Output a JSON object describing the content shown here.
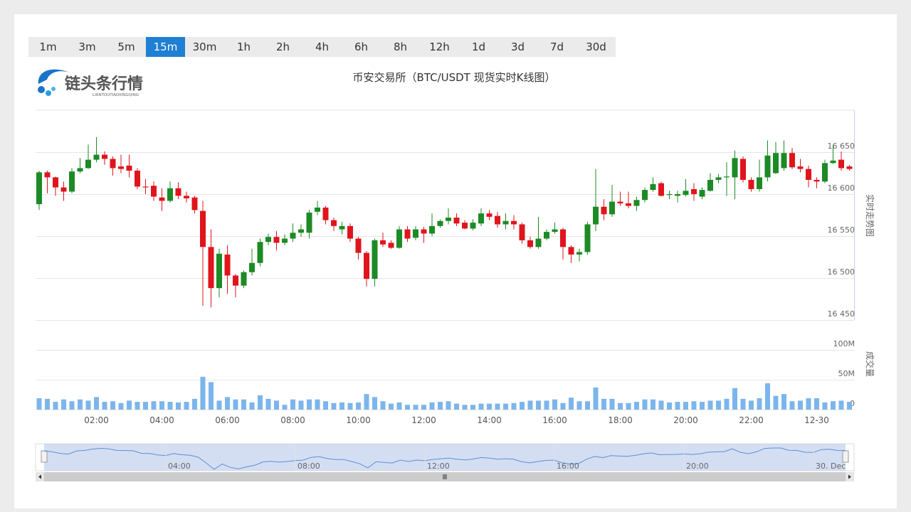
{
  "toolbar": {
    "timeframes": [
      "1m",
      "3m",
      "5m",
      "15m",
      "30m",
      "1h",
      "2h",
      "4h",
      "6h",
      "8h",
      "12h",
      "1d",
      "3d",
      "7d",
      "30d"
    ],
    "active_index": 3
  },
  "logo": {
    "name": "链头条行情",
    "subtitle": "LIANTOUTIAOXINGQING"
  },
  "chart_data": [
    {
      "type": "candlestick",
      "title": "币安交易所（BTC/USDT 现货实时K线图）",
      "y_label": "实时走势图",
      "up_color": "#1c8a25",
      "down_color": "#e0141c",
      "ylim": [
        16450,
        16700
      ],
      "yticks": [
        {
          "value": 16450,
          "label": "16 450"
        },
        {
          "value": 16500,
          "label": "16 500"
        },
        {
          "value": 16550,
          "label": "16 550"
        },
        {
          "value": 16600,
          "label": "16 600"
        },
        {
          "value": 16650,
          "label": "16 650"
        }
      ],
      "grid": true,
      "open": [
        16588,
        16626,
        16620,
        16608,
        16603,
        16627,
        16631,
        16641,
        16647,
        16642,
        16633,
        16634,
        16628,
        16609,
        16610,
        16596,
        16592,
        16607,
        16598,
        16596,
        16580,
        16537,
        16488,
        16528,
        16503,
        16491,
        16507,
        16518,
        16543,
        16549,
        16542,
        16547,
        16554,
        16554,
        16579,
        16584,
        16569,
        16558,
        16562,
        16547,
        16530,
        16499,
        16545,
        16542,
        16536,
        16558,
        16548,
        16558,
        16553,
        16562,
        16568,
        16572,
        16566,
        16559,
        16565,
        16577,
        16574,
        16564,
        16568,
        16564,
        16545,
        16537,
        16547,
        16555,
        16558,
        16537,
        16528,
        16531,
        16564,
        16585,
        16576,
        16591,
        16589,
        16586,
        16593,
        16605,
        16613,
        16599,
        16598,
        16599,
        16606,
        16597,
        16604,
        16617,
        16620,
        16620,
        16642,
        16617,
        16606,
        16620,
        16625,
        16631,
        16649,
        16633,
        16630,
        16617,
        16615,
        16637,
        16641,
        16633
      ],
      "high": [
        16628,
        16628,
        16621,
        16615,
        16631,
        16643,
        16659,
        16668,
        16651,
        16645,
        16647,
        16647,
        16631,
        16618,
        16615,
        16607,
        16615,
        16614,
        16603,
        16598,
        16592,
        16558,
        16535,
        16539,
        16505,
        16509,
        16535,
        16547,
        16553,
        16556,
        16552,
        16565,
        16564,
        16581,
        16592,
        16586,
        16572,
        16567,
        16565,
        16549,
        16532,
        16547,
        16554,
        16545,
        16562,
        16562,
        16562,
        16561,
        16577,
        16570,
        16583,
        16577,
        16569,
        16570,
        16583,
        16581,
        16579,
        16577,
        16575,
        16566,
        16549,
        16573,
        16558,
        16566,
        16560,
        16539,
        16535,
        16567,
        16630,
        16594,
        16611,
        16603,
        16603,
        16597,
        16608,
        16620,
        16615,
        16604,
        16604,
        16618,
        16613,
        16608,
        16625,
        16624,
        16638,
        16652,
        16645,
        16620,
        16641,
        16664,
        16662,
        16664,
        16655,
        16642,
        16634,
        16620,
        16641,
        16658,
        16651,
        16635
      ],
      "low": [
        16581,
        16601,
        16598,
        16592,
        16601,
        16625,
        16630,
        16638,
        16635,
        16622,
        16625,
        16620,
        16606,
        16600,
        16592,
        16580,
        16590,
        16594,
        16590,
        16577,
        16467,
        16465,
        16477,
        16481,
        16477,
        16488,
        16503,
        16514,
        16539,
        16533,
        16539,
        16543,
        16549,
        16547,
        16575,
        16564,
        16556,
        16552,
        16543,
        16522,
        16490,
        16490,
        16537,
        16535,
        16535,
        16543,
        16545,
        16542,
        16550,
        16560,
        16564,
        16562,
        16558,
        16557,
        16562,
        16569,
        16560,
        16558,
        16558,
        16541,
        16535,
        16535,
        16545,
        16553,
        16522,
        16518,
        16520,
        16528,
        16556,
        16569,
        16573,
        16586,
        16583,
        16580,
        16590,
        16603,
        16597,
        16594,
        16590,
        16597,
        16592,
        16594,
        16603,
        16613,
        16598,
        16594,
        16614,
        16603,
        16603,
        16615,
        16624,
        16628,
        16630,
        16626,
        16608,
        16607,
        16613,
        16636,
        16628,
        16628
      ],
      "close": [
        16626,
        16620,
        16608,
        16603,
        16627,
        16631,
        16641,
        16647,
        16642,
        16631,
        16630,
        16628,
        16609,
        16608,
        16597,
        16592,
        16607,
        16598,
        16595,
        16581,
        16537,
        16488,
        16529,
        16503,
        16491,
        16507,
        16518,
        16543,
        16549,
        16542,
        16547,
        16554,
        16558,
        16578,
        16584,
        16569,
        16562,
        16562,
        16547,
        16530,
        16499,
        16545,
        16540,
        16536,
        16558,
        16547,
        16558,
        16553,
        16562,
        16568,
        16572,
        16565,
        16559,
        16566,
        16577,
        16573,
        16564,
        16568,
        16564,
        16545,
        16537,
        16547,
        16555,
        16558,
        16537,
        16528,
        16531,
        16564,
        16585,
        16576,
        16591,
        16589,
        16586,
        16593,
        16605,
        16612,
        16598,
        16600,
        16600,
        16604,
        16600,
        16605,
        16617,
        16620,
        16621,
        16643,
        16617,
        16606,
        16620,
        16646,
        16649,
        16649,
        16632,
        16630,
        16617,
        16615,
        16637,
        16640,
        16631,
        16630
      ]
    },
    {
      "type": "bar",
      "y_label": "成交量",
      "color": "#7cb5ec",
      "ylim": [
        0,
        100
      ],
      "yticks": [
        0,
        {
          "value": 50,
          "label": "50M"
        },
        {
          "value": 100,
          "label": "100M"
        }
      ],
      "grid": true,
      "categories": [
        null,
        null,
        null,
        null,
        null,
        null,
        null,
        "02:00",
        null,
        null,
        null,
        null,
        null,
        null,
        null,
        "04:00",
        null,
        null,
        null,
        null,
        null,
        null,
        null,
        "06:00",
        null,
        null,
        null,
        null,
        null,
        null,
        null,
        "08:00",
        null,
        null,
        null,
        null,
        null,
        null,
        null,
        "10:00",
        null,
        null,
        null,
        null,
        null,
        null,
        null,
        "12:00",
        null,
        null,
        null,
        null,
        null,
        null,
        null,
        "14:00",
        null,
        null,
        null,
        null,
        null,
        null,
        null,
        "16:00",
        null,
        null,
        null,
        null,
        null,
        null,
        null,
        "18:00",
        null,
        null,
        null,
        null,
        null,
        null,
        null,
        "20:00",
        null,
        null,
        null,
        null,
        null,
        null,
        null,
        "22:00",
        null,
        null,
        null,
        null,
        null,
        null,
        null,
        "12-30",
        null,
        null,
        null,
        null
      ],
      "values": [
        19,
        18,
        13,
        17,
        14,
        17,
        15,
        21,
        13,
        14,
        11,
        15,
        13,
        13,
        14,
        14,
        13,
        12,
        13,
        18,
        55,
        46,
        15,
        21,
        17,
        17,
        12,
        24,
        18,
        15,
        8,
        17,
        15,
        17,
        17,
        14,
        11,
        12,
        11,
        12,
        26,
        21,
        14,
        10,
        12,
        8,
        8,
        8,
        12,
        13,
        14,
        10,
        8,
        8,
        10,
        10,
        10,
        10,
        11,
        13,
        15,
        15,
        15,
        17,
        11,
        20,
        14,
        14,
        37,
        18,
        18,
        11,
        11,
        13,
        17,
        17,
        15,
        12,
        13,
        13,
        14,
        13,
        15,
        15,
        18,
        36,
        18,
        15,
        19,
        44,
        23,
        26,
        14,
        15,
        19,
        19,
        12,
        14,
        15,
        13
      ]
    }
  ],
  "navigator": {
    "labels": [
      "04:00",
      "08:00",
      "12:00",
      "16:00",
      "20:00",
      "30. Dec"
    ]
  }
}
